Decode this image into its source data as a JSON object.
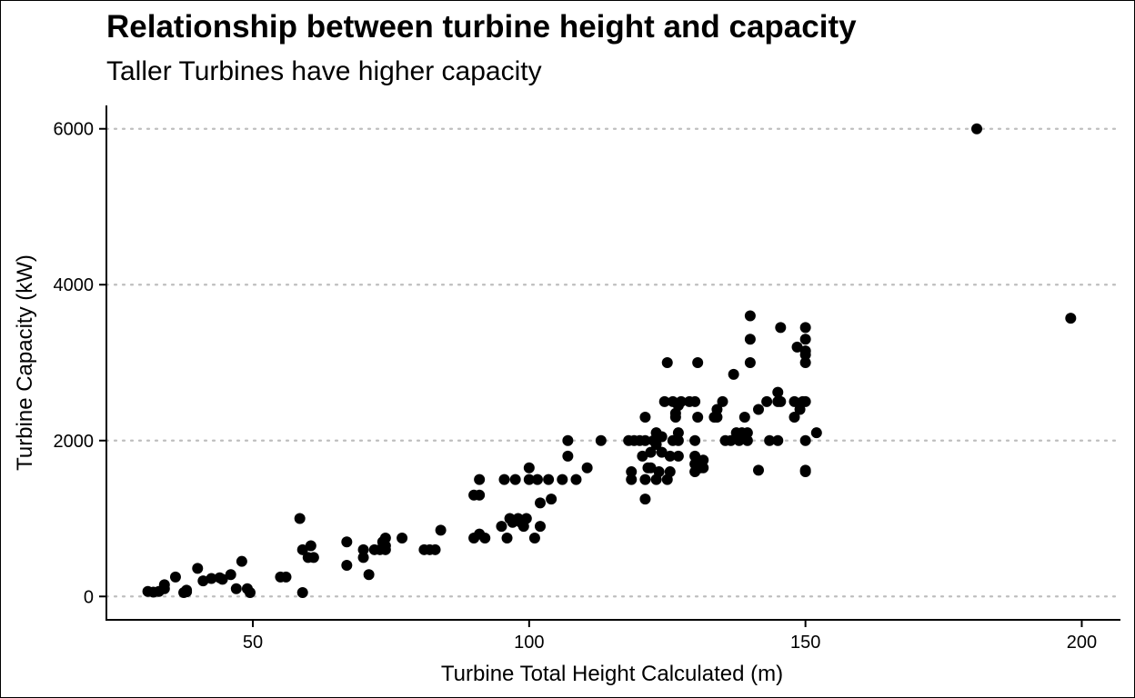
{
  "chart_data": {
    "type": "scatter",
    "title": "Relationship between turbine height and capacity",
    "subtitle": "Taller Turbines have higher capacity",
    "xlabel": "Turbine Total Height Calculated (m)",
    "ylabel": "Turbine Capacity (kW)",
    "xlim": [
      23.5,
      207
    ],
    "ylim": [
      -300,
      6300
    ],
    "x_ticks": [
      50,
      100,
      150,
      200
    ],
    "y_ticks": [
      0,
      2000,
      4000,
      6000
    ],
    "grid": "horizontal dotted major",
    "legend": "none",
    "point_color": "#000000",
    "grid_color": "#bebebe",
    "points": [
      [
        31,
        65
      ],
      [
        32,
        55
      ],
      [
        33,
        65
      ],
      [
        34,
        100
      ],
      [
        34,
        150
      ],
      [
        36,
        250
      ],
      [
        37.5,
        50
      ],
      [
        38,
        80
      ],
      [
        38,
        60
      ],
      [
        40,
        360
      ],
      [
        41,
        200
      ],
      [
        42.5,
        230
      ],
      [
        44,
        240
      ],
      [
        44.5,
        220
      ],
      [
        46,
        280
      ],
      [
        47,
        100
      ],
      [
        48,
        450
      ],
      [
        49,
        100
      ],
      [
        49.5,
        50
      ],
      [
        55,
        250
      ],
      [
        56,
        250
      ],
      [
        58.5,
        1000
      ],
      [
        59,
        50
      ],
      [
        59,
        600
      ],
      [
        60,
        500
      ],
      [
        60.5,
        650
      ],
      [
        61,
        500
      ],
      [
        67,
        700
      ],
      [
        67,
        400
      ],
      [
        70,
        600
      ],
      [
        70,
        500
      ],
      [
        71,
        280
      ],
      [
        72,
        600
      ],
      [
        73,
        600
      ],
      [
        73.5,
        700
      ],
      [
        74,
        750
      ],
      [
        74,
        650
      ],
      [
        74,
        600
      ],
      [
        77,
        750
      ],
      [
        81,
        600
      ],
      [
        82,
        600
      ],
      [
        83,
        600
      ],
      [
        84,
        850
      ],
      [
        90,
        1300
      ],
      [
        91,
        1300
      ],
      [
        91,
        1500
      ],
      [
        90,
        750
      ],
      [
        91,
        800
      ],
      [
        92,
        750
      ],
      [
        95,
        900
      ],
      [
        95.5,
        1500
      ],
      [
        96,
        750
      ],
      [
        96.5,
        1000
      ],
      [
        97,
        950
      ],
      [
        97.5,
        1500
      ],
      [
        98,
        1000
      ],
      [
        98.5,
        950
      ],
      [
        99,
        900
      ],
      [
        99.5,
        1000
      ],
      [
        100,
        1650
      ],
      [
        100,
        1500
      ],
      [
        101,
        750
      ],
      [
        101.5,
        1500
      ],
      [
        102,
        1200
      ],
      [
        102,
        900
      ],
      [
        103.5,
        1500
      ],
      [
        104,
        1250
      ],
      [
        106,
        1500
      ],
      [
        107,
        2000
      ],
      [
        107,
        1800
      ],
      [
        108.5,
        1500
      ],
      [
        110.5,
        1650
      ],
      [
        113,
        2000
      ],
      [
        118,
        2000
      ],
      [
        118.5,
        1500
      ],
      [
        118.5,
        1600
      ],
      [
        119,
        2000
      ],
      [
        120,
        2000
      ],
      [
        120.5,
        1800
      ],
      [
        121,
        2000
      ],
      [
        121,
        1500
      ],
      [
        121,
        1250
      ],
      [
        121,
        2300
      ],
      [
        121.5,
        1650
      ],
      [
        122,
        1650
      ],
      [
        122,
        1850
      ],
      [
        122.5,
        2000
      ],
      [
        123,
        1950
      ],
      [
        123,
        1500
      ],
      [
        123,
        2100
      ],
      [
        123.5,
        1600
      ],
      [
        124,
        2050
      ],
      [
        124,
        1850
      ],
      [
        124.5,
        2500
      ],
      [
        125,
        3000
      ],
      [
        125,
        1500
      ],
      [
        125.5,
        1800
      ],
      [
        125.5,
        1600
      ],
      [
        126,
        2500
      ],
      [
        126,
        2000
      ],
      [
        126.5,
        2350
      ],
      [
        126.5,
        2300
      ],
      [
        127,
        2100
      ],
      [
        127,
        2450
      ],
      [
        127,
        2000
      ],
      [
        127,
        1800
      ],
      [
        127.5,
        2500
      ],
      [
        129,
        2500
      ],
      [
        130,
        2500
      ],
      [
        130,
        2000
      ],
      [
        130,
        1600
      ],
      [
        130,
        1700
      ],
      [
        130,
        1800
      ],
      [
        130.5,
        3000
      ],
      [
        130.5,
        2300
      ],
      [
        130.5,
        1750
      ],
      [
        131,
        1650
      ],
      [
        131.5,
        1750
      ],
      [
        131.5,
        1650
      ],
      [
        133.5,
        2300
      ],
      [
        134,
        2400
      ],
      [
        134,
        2300
      ],
      [
        135,
        2500
      ],
      [
        135.5,
        2000
      ],
      [
        136.5,
        2000
      ],
      [
        137,
        2850
      ],
      [
        137.5,
        2100
      ],
      [
        138,
        2000
      ],
      [
        138.5,
        2100
      ],
      [
        139,
        2300
      ],
      [
        139.5,
        2100
      ],
      [
        139.5,
        2000
      ],
      [
        140,
        3600
      ],
      [
        140,
        3300
      ],
      [
        140,
        3000
      ],
      [
        141.5,
        2400
      ],
      [
        141.5,
        1620
      ],
      [
        143,
        2500
      ],
      [
        143.5,
        2000
      ],
      [
        145,
        2500
      ],
      [
        145,
        2620
      ],
      [
        145,
        2000
      ],
      [
        145.5,
        3450
      ],
      [
        145.5,
        2500
      ],
      [
        148,
        2500
      ],
      [
        148,
        2300
      ],
      [
        148.5,
        3200
      ],
      [
        149,
        2400
      ],
      [
        149.5,
        2500
      ],
      [
        150,
        3450
      ],
      [
        150,
        3300
      ],
      [
        150,
        3150
      ],
      [
        150,
        3100
      ],
      [
        150,
        3000
      ],
      [
        150,
        2500
      ],
      [
        150,
        2000
      ],
      [
        150,
        1600
      ],
      [
        150,
        1620
      ],
      [
        152,
        2100
      ],
      [
        181,
        6000
      ],
      [
        198,
        3570
      ]
    ]
  }
}
